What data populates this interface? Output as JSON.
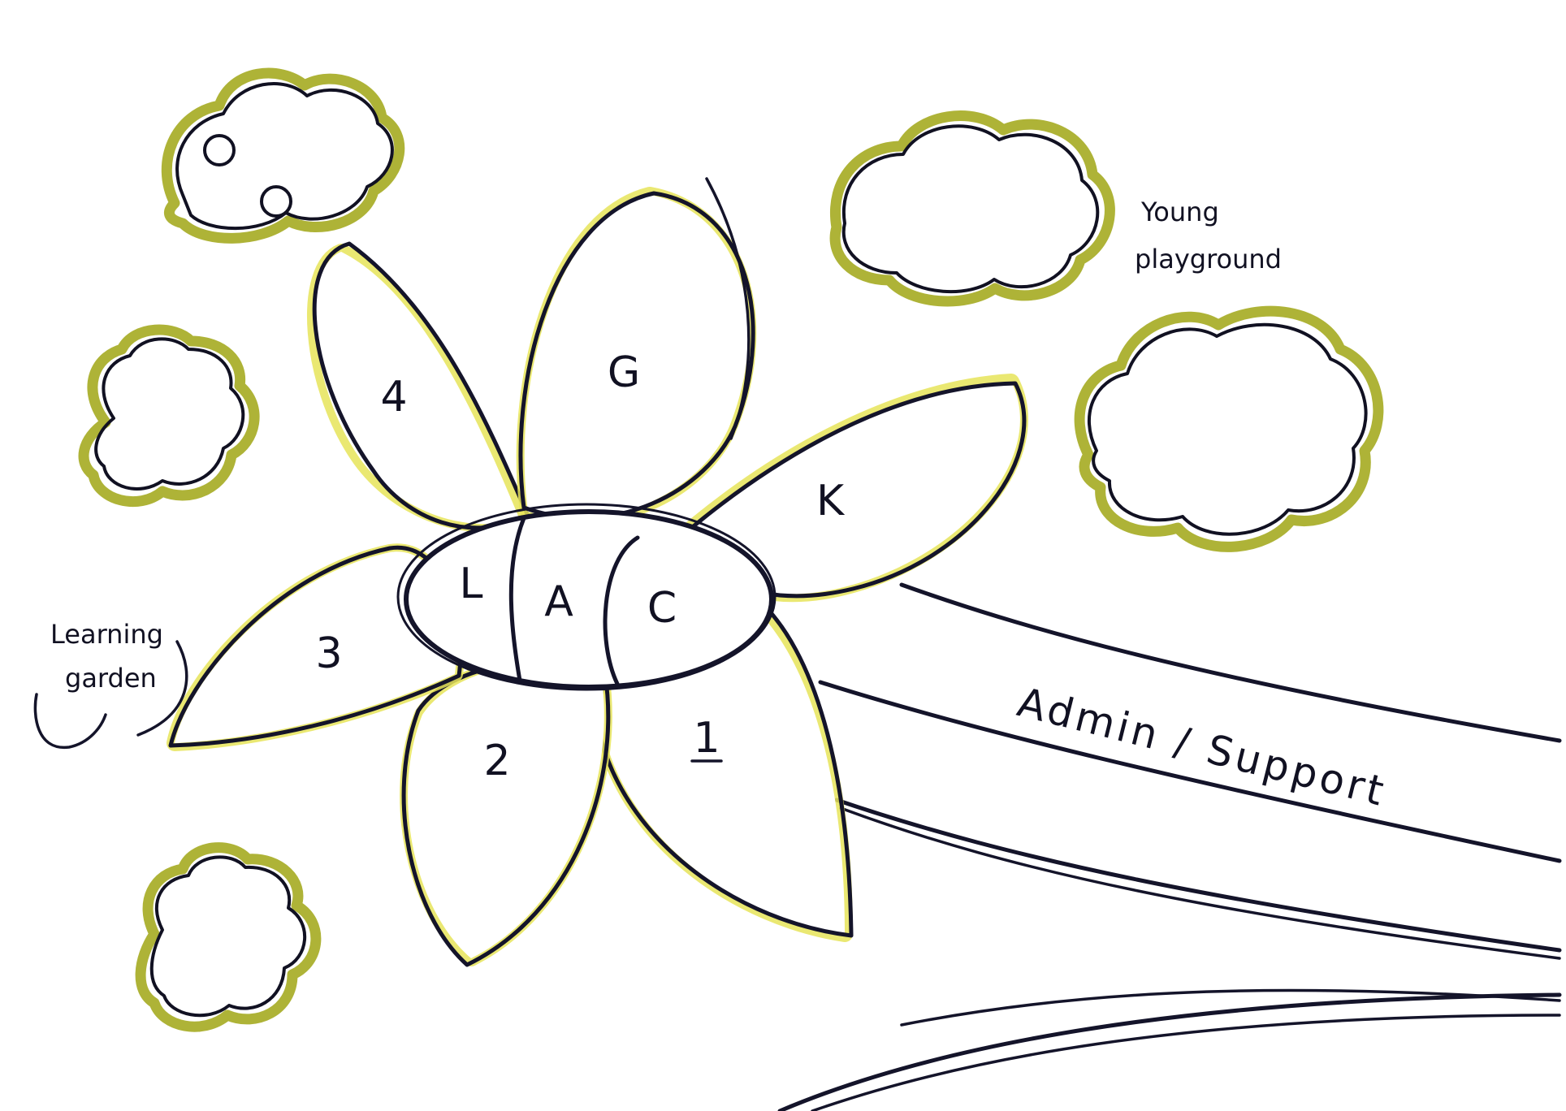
{
  "petals": {
    "p1": "1",
    "p2": "2",
    "p3": "3",
    "p4": "4",
    "g": "G",
    "k": "K"
  },
  "center": {
    "l": "L",
    "a": "A",
    "c": "C"
  },
  "annotations": {
    "learning_garden": [
      "Learning",
      "garden"
    ],
    "young_playground": [
      "Young",
      "playground"
    ],
    "admin_support": "Admin / Support"
  },
  "colors": {
    "ink": "#14142a",
    "petal_highlight": "#f3f08a",
    "tree_fill": "#a5ab21"
  }
}
